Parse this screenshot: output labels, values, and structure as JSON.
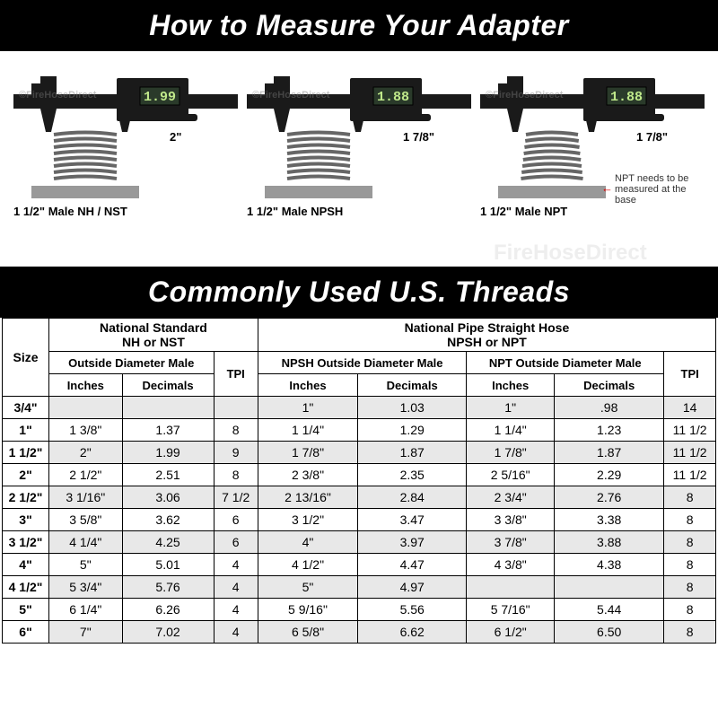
{
  "titles": {
    "main": "How to Measure Your Adapter",
    "table": "Commonly Used U.S. Threads"
  },
  "calipers": [
    {
      "reading": "1.99",
      "dim": "2\"",
      "caption": "1 1/2\" Male NH / NST",
      "thread_taper": false,
      "note": null
    },
    {
      "reading": "1.88",
      "dim": "1 7/8\"",
      "caption": "1 1/2\" Male NPSH",
      "thread_taper": false,
      "note": null
    },
    {
      "reading": "1.88",
      "dim": "1 7/8\"",
      "caption": "1 1/2\" Male NPT",
      "thread_taper": true,
      "note": "NPT needs to be measured at the base"
    }
  ],
  "watermark": "©FireHoseDirect",
  "watermark_plain": "FireHoseDirect",
  "table": {
    "group_headers": {
      "size": "Size",
      "nh": "National Standard\nNH or NST",
      "npsh": "National Pipe Straight Hose\nNPSH or NPT"
    },
    "sub_headers": {
      "od_male": "Outside Diameter Male",
      "tpi": "TPI",
      "npsh_od": "NPSH Outside Diameter Male",
      "npt_od": "NPT Outside Diameter Male"
    },
    "unit_headers": {
      "inches": "Inches",
      "decimals": "Decimals"
    },
    "rows": [
      {
        "size": "3/4\"",
        "nh_in": "",
        "nh_dec": "",
        "nh_tpi": "",
        "npsh_in": "1\"",
        "npsh_dec": "1.03",
        "npt_in": "1\"",
        "npt_dec": ".98",
        "tpi": "14",
        "band": true
      },
      {
        "size": "1\"",
        "nh_in": "1 3/8\"",
        "nh_dec": "1.37",
        "nh_tpi": "8",
        "npsh_in": "1 1/4\"",
        "npsh_dec": "1.29",
        "npt_in": "1 1/4\"",
        "npt_dec": "1.23",
        "tpi": "11 1/2",
        "band": false
      },
      {
        "size": "1 1/2\"",
        "nh_in": "2\"",
        "nh_dec": "1.99",
        "nh_tpi": "9",
        "npsh_in": "1 7/8\"",
        "npsh_dec": "1.87",
        "npt_in": "1 7/8\"",
        "npt_dec": "1.87",
        "tpi": "11 1/2",
        "band": true
      },
      {
        "size": "2\"",
        "nh_in": "2 1/2\"",
        "nh_dec": "2.51",
        "nh_tpi": "8",
        "npsh_in": "2 3/8\"",
        "npsh_dec": "2.35",
        "npt_in": "2 5/16\"",
        "npt_dec": "2.29",
        "tpi": "11 1/2",
        "band": false
      },
      {
        "size": "2 1/2\"",
        "nh_in": "3 1/16\"",
        "nh_dec": "3.06",
        "nh_tpi": "7 1/2",
        "npsh_in": "2 13/16\"",
        "npsh_dec": "2.84",
        "npt_in": "2 3/4\"",
        "npt_dec": "2.76",
        "tpi": "8",
        "band": true
      },
      {
        "size": "3\"",
        "nh_in": "3 5/8\"",
        "nh_dec": "3.62",
        "nh_tpi": "6",
        "npsh_in": "3 1/2\"",
        "npsh_dec": "3.47",
        "npt_in": "3 3/8\"",
        "npt_dec": "3.38",
        "tpi": "8",
        "band": false
      },
      {
        "size": "3 1/2\"",
        "nh_in": "4 1/4\"",
        "nh_dec": "4.25",
        "nh_tpi": "6",
        "npsh_in": "4\"",
        "npsh_dec": "3.97",
        "npt_in": "3 7/8\"",
        "npt_dec": "3.88",
        "tpi": "8",
        "band": true
      },
      {
        "size": "4\"",
        "nh_in": "5\"",
        "nh_dec": "5.01",
        "nh_tpi": "4",
        "npsh_in": "4 1/2\"",
        "npsh_dec": "4.47",
        "npt_in": "4 3/8\"",
        "npt_dec": "4.38",
        "tpi": "8",
        "band": false
      },
      {
        "size": "4 1/2\"",
        "nh_in": "5 3/4\"",
        "nh_dec": "5.76",
        "nh_tpi": "4",
        "npsh_in": "5\"",
        "npsh_dec": "4.97",
        "npt_in": "",
        "npt_dec": "",
        "tpi": "8",
        "band": true
      },
      {
        "size": "5\"",
        "nh_in": "6 1/4\"",
        "nh_dec": "6.26",
        "nh_tpi": "4",
        "npsh_in": "5 9/16\"",
        "npsh_dec": "5.56",
        "npt_in": "5 7/16\"",
        "npt_dec": "5.44",
        "tpi": "8",
        "band": false
      },
      {
        "size": "6\"",
        "nh_in": "7\"",
        "nh_dec": "7.02",
        "nh_tpi": "4",
        "npsh_in": "6 5/8\"",
        "npsh_dec": "6.62",
        "npt_in": "6 1/2\"",
        "npt_dec": "6.50",
        "tpi": "8",
        "band": true
      }
    ]
  },
  "colors": {
    "band": "#e8e8e8",
    "bg": "#ffffff",
    "black": "#000000",
    "digital_bg": "#2a3a2a",
    "digital_fg": "#bfe88a"
  }
}
